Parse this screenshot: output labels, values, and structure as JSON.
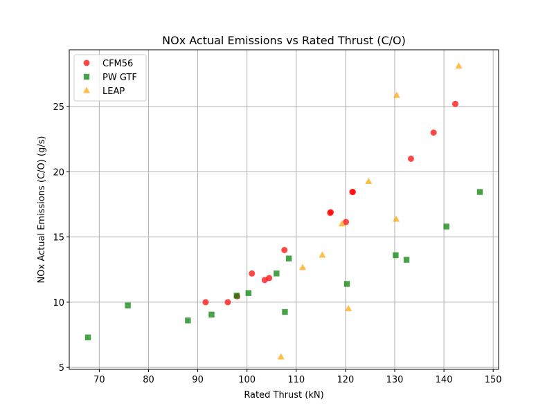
{
  "chart_data": {
    "type": "scatter",
    "title": "NOx Actual Emissions vs Rated Thrust (C/O)",
    "xlabel": "Rated Thrust (kN)",
    "ylabel": "NOx Actual Emissions (C/O) (g/s)",
    "xlim": [
      63.9,
      151.1
    ],
    "ylim": [
      4.85,
      29.35
    ],
    "xticks": [
      70,
      80,
      90,
      100,
      110,
      120,
      130,
      140,
      150
    ],
    "yticks": [
      5,
      10,
      15,
      20,
      25
    ],
    "grid": true,
    "legend_position": "upper-left",
    "series": [
      {
        "name": "CFM56",
        "marker": "circle",
        "color": "#ff0000",
        "points": [
          [
            91.6,
            10.0
          ],
          [
            96.1,
            10.0
          ],
          [
            98.0,
            10.45
          ],
          [
            101.0,
            12.2
          ],
          [
            103.6,
            11.7
          ],
          [
            104.5,
            11.85
          ],
          [
            107.6,
            14.0
          ],
          [
            116.9,
            16.85
          ],
          [
            117.0,
            16.9
          ],
          [
            120.1,
            16.15
          ],
          [
            121.4,
            18.45
          ],
          [
            121.5,
            18.45
          ],
          [
            133.3,
            21.0
          ],
          [
            137.9,
            23.0
          ],
          [
            142.3,
            25.2
          ]
        ]
      },
      {
        "name": "PW GTF",
        "marker": "square",
        "color": "#008000",
        "points": [
          [
            67.7,
            7.3
          ],
          [
            75.8,
            9.75
          ],
          [
            88.0,
            8.6
          ],
          [
            92.8,
            9.05
          ],
          [
            97.9,
            10.5
          ],
          [
            100.3,
            10.7
          ],
          [
            106.0,
            12.2
          ],
          [
            107.7,
            9.25
          ],
          [
            108.5,
            13.35
          ],
          [
            120.3,
            11.4
          ],
          [
            130.2,
            13.6
          ],
          [
            132.4,
            13.25
          ],
          [
            140.5,
            15.8
          ],
          [
            147.3,
            18.45
          ]
        ]
      },
      {
        "name": "LEAP",
        "marker": "triangle",
        "color": "#ffa500",
        "points": [
          [
            106.9,
            5.8
          ],
          [
            111.3,
            12.65
          ],
          [
            115.3,
            13.6
          ],
          [
            119.3,
            16.0
          ],
          [
            120.6,
            9.5
          ],
          [
            124.7,
            19.25
          ],
          [
            130.3,
            16.35
          ],
          [
            130.4,
            25.85
          ],
          [
            143.0,
            28.1
          ]
        ]
      }
    ]
  }
}
